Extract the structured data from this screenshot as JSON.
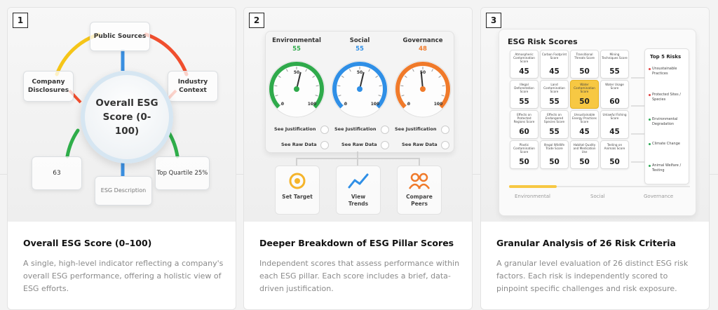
{
  "cards": [
    {
      "number": "1",
      "title": "Overall ESG Score (0–100)",
      "description": "A single, high-level indicator reflecting a company's overall ESG performance, offering a holistic view of ESG efforts.",
      "visual": {
        "center": "Overall ESG Score (0-100)",
        "nodes": {
          "public_sources": "Public Sources",
          "company_disclosures": "Company Disclosures",
          "industry_context": "Industry Context",
          "score": "63",
          "esg_description": "ESG Description",
          "top_quartile": "Top Quartile 25%"
        },
        "arc_colors": [
          "#f5c518",
          "#f04e2e",
          "#2fae4a",
          "#3a8fe0"
        ]
      }
    },
    {
      "number": "2",
      "title": "Deeper Breakdown of ESG Pillar Scores",
      "description": "Independent scores that assess performance within each ESG pillar. Each score includes a brief, data-driven justification.",
      "visual": {
        "gauges": [
          {
            "label": "Environmental",
            "value": "55",
            "color": "#2faa4b",
            "min": "0",
            "max": "100",
            "mid": "50"
          },
          {
            "label": "Social",
            "value": "55",
            "color": "#2f8fe6",
            "min": "0",
            "max": "100",
            "mid": "50"
          },
          {
            "label": "Governance",
            "value": "48",
            "color": "#f07a2a",
            "min": "0",
            "max": "100",
            "mid": "50"
          }
        ],
        "justification_label": "See Justification",
        "raw_data_label": "See Raw Data",
        "actions": [
          {
            "label": "Set Target",
            "icon": "target-icon"
          },
          {
            "label": "View Trends",
            "icon": "trend-icon"
          },
          {
            "label": "Compare Peers",
            "icon": "peers-icon"
          }
        ]
      }
    },
    {
      "number": "3",
      "title": "Granular Analysis of 26 Risk Criteria",
      "description": "A granular level evaluation of 26 distinct ESG risk factors. Each risk is independently scored to pinpoint specific challenges and risk exposure.",
      "visual": {
        "title": "ESG Risk Scores",
        "grid": [
          [
            {
              "label": "Atmospheric Contamination Score",
              "value": "45"
            },
            {
              "label": "Carbon Footprint Score",
              "value": "45"
            },
            {
              "label": "Transitional Threats Score",
              "value": "50"
            },
            {
              "label": "Mining Techniques Score",
              "value": "55"
            }
          ],
          [
            {
              "label": "Illegal Deforestation Score",
              "value": "55"
            },
            {
              "label": "Land Contamination Score",
              "value": "55"
            },
            {
              "label": "Water Contamination Score",
              "value": "50",
              "highlight": true
            },
            {
              "label": "Water Usage Score",
              "value": "60"
            }
          ],
          [
            {
              "label": "Effects on Protected Regions Score",
              "value": "60"
            },
            {
              "label": "Effects on Endangered Species Score",
              "value": "55"
            },
            {
              "label": "Unsustainable Energy Practices Score",
              "value": "45"
            },
            {
              "label": "Unlawful Fishing Score",
              "value": "45"
            }
          ],
          [
            {
              "label": "Plastic Contamination Score",
              "value": "50"
            },
            {
              "label": "Illegal Wildlife Trade Score",
              "value": "50"
            },
            {
              "label": "Habitat Quality and Medication Use",
              "value": "50"
            },
            {
              "label": "Testing on Animals Score",
              "value": "50"
            }
          ]
        ],
        "top5_title": "Top 5 Risks",
        "top5": [
          {
            "label": "Unsustainable Practices",
            "color": "red"
          },
          {
            "label": "Protected Sites / Species",
            "color": "red"
          },
          {
            "label": "Environmental Degradation",
            "color": "green"
          },
          {
            "label": "Climate Change",
            "color": "green"
          },
          {
            "label": "Animal Welfare / Testing",
            "color": "green"
          }
        ],
        "tabs": [
          "Environmental",
          "Social",
          "Governance"
        ]
      }
    }
  ]
}
